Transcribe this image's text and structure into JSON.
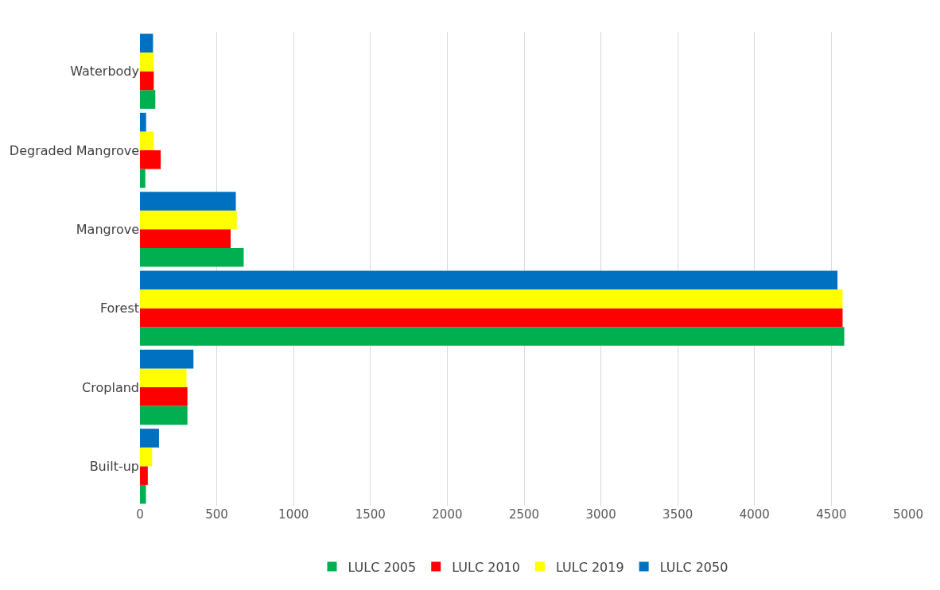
{
  "chart_data": {
    "type": "bar",
    "orientation": "horizontal",
    "categories": [
      "Waterbody",
      "Degraded Mangrove",
      "Mangrove",
      "Forest",
      "Cropland",
      "Built-up"
    ],
    "series": [
      {
        "name": "LULC 2005",
        "color": "#00b050",
        "values": [
          100,
          35,
          675,
          4584,
          309,
          39
        ]
      },
      {
        "name": "LULC 2010",
        "color": "#ff0000",
        "values": [
          90,
          135,
          590,
          4573,
          309,
          51
        ]
      },
      {
        "name": "LULC 2019",
        "color": "#ffff00",
        "values": [
          90,
          90,
          630,
          4573,
          303,
          79
        ]
      },
      {
        "name": "LULC 2050",
        "color": "#0070c0",
        "values": [
          85,
          40,
          624,
          4540,
          348,
          124
        ]
      }
    ],
    "xlim": [
      0,
      5000
    ],
    "xticks": [
      0,
      500,
      1000,
      1500,
      2000,
      2500,
      3000,
      3500,
      4000,
      4500,
      5000
    ],
    "grid": "x",
    "legend": "bottom"
  }
}
